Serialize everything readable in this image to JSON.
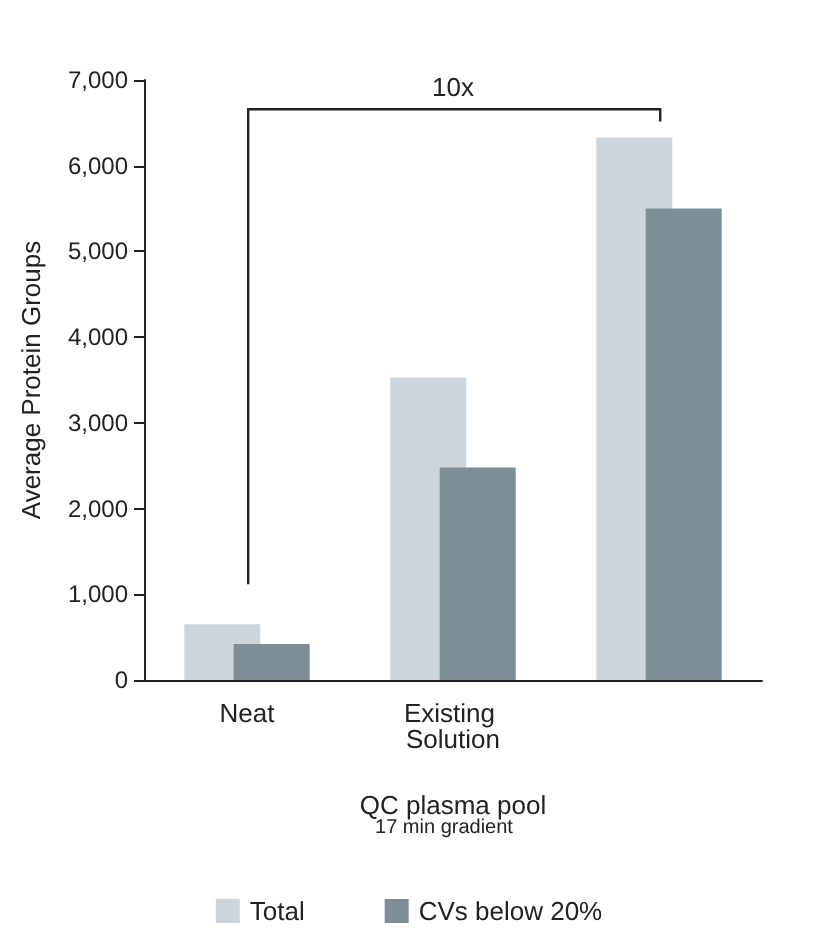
{
  "chart_data": {
    "type": "bar",
    "ylabel": "Average Protein Groups",
    "xlabel": "QC plasma pool",
    "categories": [
      "Neat",
      "Existing Solution",
      null
    ],
    "series": [
      {
        "name": "Total",
        "color": "#cdd5dc",
        "values": [
          650,
          3530,
          6330
        ]
      },
      {
        "name": "CVs below 20%",
        "color": "#7d8e98",
        "values": [
          420,
          2480,
          5500
        ]
      }
    ],
    "ylim": [
      0,
      7000
    ],
    "yticks": [
      {
        "value": 0,
        "label": "0"
      },
      {
        "value": 1000,
        "label": "1,000"
      },
      {
        "value": 2000,
        "label": "2,000"
      },
      {
        "value": 3000,
        "label": "3,000"
      },
      {
        "value": 4000,
        "label": "4,000"
      },
      {
        "value": 5000,
        "label": "5,000"
      },
      {
        "value": 6000,
        "label": "6,000"
      },
      {
        "value": 7000,
        "label": "7,000"
      }
    ],
    "annotations": [
      "10x",
      "17 min gradient"
    ],
    "grid": false,
    "legend": "bottom"
  }
}
